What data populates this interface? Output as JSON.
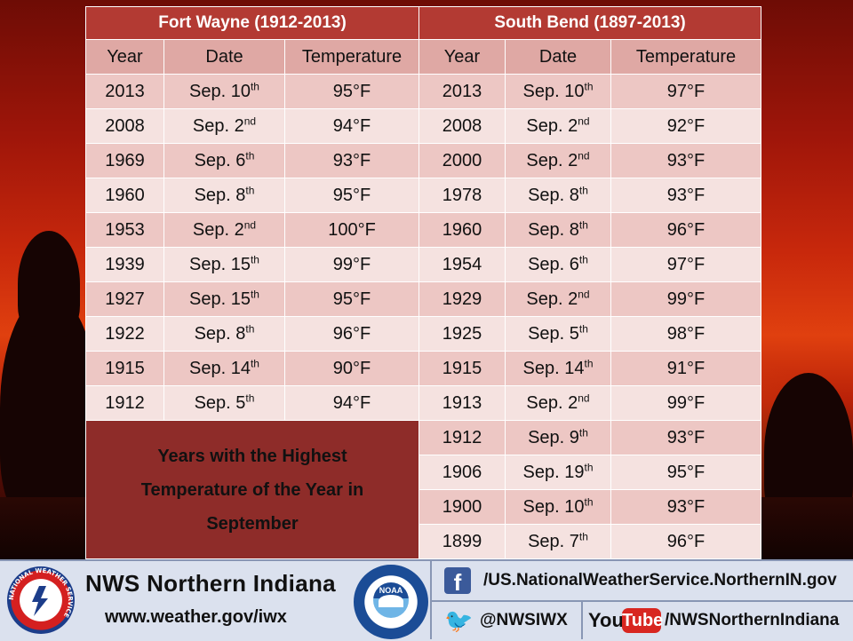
{
  "table": {
    "fort_wayne_header": "Fort Wayne (1912-2013)",
    "south_bend_header": "South Bend (1897-2013)",
    "col_year": "Year",
    "col_date": "Date",
    "col_temp": "Temperature",
    "fort_wayne_rows": [
      {
        "year": "2013",
        "date": "Sep. 10",
        "sup": "th",
        "temp": "95°F"
      },
      {
        "year": "2008",
        "date": "Sep. 2",
        "sup": "nd",
        "temp": "94°F"
      },
      {
        "year": "1969",
        "date": "Sep. 6",
        "sup": "th",
        "temp": "93°F"
      },
      {
        "year": "1960",
        "date": "Sep. 8",
        "sup": "th",
        "temp": "95°F"
      },
      {
        "year": "1953",
        "date": "Sep. 2",
        "sup": "nd",
        "temp": "100°F"
      },
      {
        "year": "1939",
        "date": "Sep. 15",
        "sup": "th",
        "temp": "99°F"
      },
      {
        "year": "1927",
        "date": "Sep. 15",
        "sup": "th",
        "temp": "95°F"
      },
      {
        "year": "1922",
        "date": "Sep. 8",
        "sup": "th",
        "temp": "96°F"
      },
      {
        "year": "1915",
        "date": "Sep. 14",
        "sup": "th",
        "temp": "90°F"
      },
      {
        "year": "1912",
        "date": "Sep. 5",
        "sup": "th",
        "temp": "94°F"
      }
    ],
    "south_bend_rows": [
      {
        "year": "2013",
        "date": "Sep. 10",
        "sup": "th",
        "temp": "97°F"
      },
      {
        "year": "2008",
        "date": "Sep. 2",
        "sup": "nd",
        "temp": "92°F"
      },
      {
        "year": "2000",
        "date": "Sep. 2",
        "sup": "nd",
        "temp": "93°F"
      },
      {
        "year": "1978",
        "date": "Sep. 8",
        "sup": "th",
        "temp": "93°F"
      },
      {
        "year": "1960",
        "date": "Sep. 8",
        "sup": "th",
        "temp": "96°F"
      },
      {
        "year": "1954",
        "date": "Sep. 6",
        "sup": "th",
        "temp": "97°F"
      },
      {
        "year": "1929",
        "date": "Sep. 2",
        "sup": "nd",
        "temp": "99°F"
      },
      {
        "year": "1925",
        "date": "Sep. 5",
        "sup": "th",
        "temp": "98°F"
      },
      {
        "year": "1915",
        "date": "Sep. 14",
        "sup": "th",
        "temp": "91°F"
      },
      {
        "year": "1913",
        "date": "Sep. 2",
        "sup": "nd",
        "temp": "99°F"
      },
      {
        "year": "1912",
        "date": "Sep. 9",
        "sup": "th",
        "temp": "93°F"
      },
      {
        "year": "1906",
        "date": "Sep. 19",
        "sup": "th",
        "temp": "95°F"
      },
      {
        "year": "1900",
        "date": "Sep. 10",
        "sup": "th",
        "temp": "93°F"
      },
      {
        "year": "1899",
        "date": "Sep. 7",
        "sup": "th",
        "temp": "96°F"
      }
    ],
    "caption_lines": [
      "Years with the Highest",
      "Temperature of the Year in",
      "September"
    ]
  },
  "footer": {
    "title": "NWS Northern Indiana",
    "url": "www.weather.gov/iwx",
    "facebook": "/US.NationalWeatherService.NorthernIN.gov",
    "twitter": "@NWSIWX",
    "youtube_logo_you": "You",
    "youtube_logo_tube": "Tube",
    "youtube": "/NWSNorthernIndiana",
    "nws_seal_text": "NATIONAL WEATHER SERVICE",
    "noaa_seal_text": "NOAA"
  },
  "colors": {
    "city_header": "#b33a33",
    "caption_bg": "#8e2c29",
    "row_odd": "#edc7c4",
    "row_even": "#f5e2e0",
    "footer_bg": "#dbe1ee"
  },
  "icons": [
    "nws-seal-icon",
    "noaa-seal-icon",
    "facebook-icon",
    "twitter-icon",
    "youtube-icon"
  ]
}
